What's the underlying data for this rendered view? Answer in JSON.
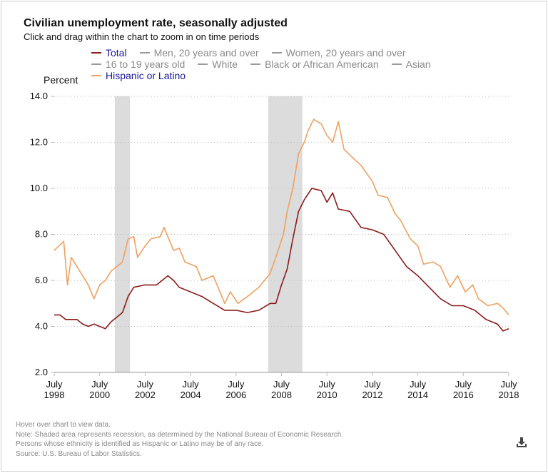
{
  "header": {
    "title": "Civilian unemployment rate, seasonally adjusted",
    "subtitle": "Click and drag within the chart to zoom in on time periods"
  },
  "legend": [
    {
      "label": "Total",
      "color": "#8b1a1a",
      "active": true
    },
    {
      "label": "Men, 20 years and over",
      "color": "#9a9a9a",
      "active": false
    },
    {
      "label": "Women, 20 years and over",
      "color": "#9a9a9a",
      "active": false
    },
    {
      "label": "16 to 19 years old",
      "color": "#9a9a9a",
      "active": false
    },
    {
      "label": "White",
      "color": "#9a9a9a",
      "active": false
    },
    {
      "label": "Black or African American",
      "color": "#9a9a9a",
      "active": false
    },
    {
      "label": "Asian",
      "color": "#9a9a9a",
      "active": false
    },
    {
      "label": "Hispanic or Latino",
      "color": "#f0a060",
      "active": true
    }
  ],
  "footer": {
    "hover": "Hover over chart to view data.",
    "note": "Note: Shaded area represents recession, as determined by the National Bureau of Economic Research.",
    "ethnicity": "Persons whose ethnicity is identified as Hispanic or Latino may be of any race.",
    "source": "Source: U.S. Bureau of Labor Statistics.",
    "download_icon": "download-icon"
  },
  "chart_data": {
    "type": "line",
    "ylabel": "Percent",
    "ylim": [
      2,
      14
    ],
    "yticks": [
      "2.0",
      "4.0",
      "6.0",
      "8.0",
      "10.0",
      "12.0",
      "14.0"
    ],
    "xlim": [
      "1998-07",
      "2018-07"
    ],
    "xticks": [
      [
        "July",
        "1998"
      ],
      [
        "July",
        "2000"
      ],
      [
        "July",
        "2002"
      ],
      [
        "July",
        "2004"
      ],
      [
        "July",
        "2006"
      ],
      [
        "July",
        "2008"
      ],
      [
        "July",
        "2010"
      ],
      [
        "July",
        "2012"
      ],
      [
        "July",
        "2014"
      ],
      [
        "July",
        "2016"
      ],
      [
        "July",
        "2018"
      ]
    ],
    "grid": "horizontal dotted",
    "legend_placement": "top",
    "recessions": [
      [
        "2001-03",
        "2001-11"
      ],
      [
        "2007-12",
        "2009-06"
      ]
    ],
    "recession_color": "#dcdcdc",
    "series": [
      {
        "name": "Total",
        "color": "#8b1a1a",
        "points": [
          [
            "1998-07",
            4.5
          ],
          [
            "1998-10",
            4.5
          ],
          [
            "1999-01",
            4.3
          ],
          [
            "1999-04",
            4.3
          ],
          [
            "1999-07",
            4.3
          ],
          [
            "1999-10",
            4.1
          ],
          [
            "2000-01",
            4.0
          ],
          [
            "2000-04",
            4.1
          ],
          [
            "2000-07",
            4.0
          ],
          [
            "2000-10",
            3.9
          ],
          [
            "2001-01",
            4.2
          ],
          [
            "2001-04",
            4.4
          ],
          [
            "2001-07",
            4.6
          ],
          [
            "2001-10",
            5.3
          ],
          [
            "2002-01",
            5.7
          ],
          [
            "2002-07",
            5.8
          ],
          [
            "2003-01",
            5.8
          ],
          [
            "2003-04",
            6.0
          ],
          [
            "2003-07",
            6.2
          ],
          [
            "2003-10",
            6.0
          ],
          [
            "2004-01",
            5.7
          ],
          [
            "2004-07",
            5.5
          ],
          [
            "2005-01",
            5.3
          ],
          [
            "2005-07",
            5.0
          ],
          [
            "2006-01",
            4.7
          ],
          [
            "2006-07",
            4.7
          ],
          [
            "2007-01",
            4.6
          ],
          [
            "2007-07",
            4.7
          ],
          [
            "2008-01",
            5.0
          ],
          [
            "2008-04",
            5.0
          ],
          [
            "2008-07",
            5.8
          ],
          [
            "2008-10",
            6.5
          ],
          [
            "2009-01",
            7.8
          ],
          [
            "2009-04",
            9.0
          ],
          [
            "2009-07",
            9.5
          ],
          [
            "2009-11",
            10.0
          ],
          [
            "2010-04",
            9.9
          ],
          [
            "2010-07",
            9.4
          ],
          [
            "2010-10",
            9.8
          ],
          [
            "2011-01",
            9.1
          ],
          [
            "2011-07",
            9.0
          ],
          [
            "2012-01",
            8.3
          ],
          [
            "2012-07",
            8.2
          ],
          [
            "2013-01",
            8.0
          ],
          [
            "2013-07",
            7.3
          ],
          [
            "2014-01",
            6.6
          ],
          [
            "2014-07",
            6.2
          ],
          [
            "2015-01",
            5.7
          ],
          [
            "2015-07",
            5.2
          ],
          [
            "2016-01",
            4.9
          ],
          [
            "2016-07",
            4.9
          ],
          [
            "2017-01",
            4.7
          ],
          [
            "2017-07",
            4.3
          ],
          [
            "2018-01",
            4.1
          ],
          [
            "2018-04",
            3.8
          ],
          [
            "2018-07",
            3.9
          ]
        ]
      },
      {
        "name": "Hispanic or Latino",
        "color": "#f0a060",
        "points": [
          [
            "1998-07",
            7.3
          ],
          [
            "1998-12",
            7.7
          ],
          [
            "1999-02",
            5.8
          ],
          [
            "1999-04",
            7.0
          ],
          [
            "1999-07",
            6.6
          ],
          [
            "2000-01",
            5.8
          ],
          [
            "2000-04",
            5.2
          ],
          [
            "2000-07",
            5.8
          ],
          [
            "2000-10",
            6.0
          ],
          [
            "2001-01",
            6.4
          ],
          [
            "2001-07",
            6.8
          ],
          [
            "2001-10",
            7.8
          ],
          [
            "2002-01",
            7.9
          ],
          [
            "2002-03",
            7.0
          ],
          [
            "2002-07",
            7.5
          ],
          [
            "2002-10",
            7.8
          ],
          [
            "2003-03",
            7.9
          ],
          [
            "2003-05",
            8.3
          ],
          [
            "2003-10",
            7.3
          ],
          [
            "2004-01",
            7.4
          ],
          [
            "2004-04",
            6.8
          ],
          [
            "2004-10",
            6.6
          ],
          [
            "2005-01",
            6.0
          ],
          [
            "2005-07",
            6.2
          ],
          [
            "2006-01",
            5.0
          ],
          [
            "2006-04",
            5.5
          ],
          [
            "2006-08",
            5.0
          ],
          [
            "2007-01",
            5.3
          ],
          [
            "2007-07",
            5.7
          ],
          [
            "2008-01",
            6.3
          ],
          [
            "2008-04",
            7.0
          ],
          [
            "2008-08",
            8.0
          ],
          [
            "2008-10",
            9.0
          ],
          [
            "2009-01",
            10.0
          ],
          [
            "2009-04",
            11.5
          ],
          [
            "2009-07",
            12.0
          ],
          [
            "2009-09",
            12.5
          ],
          [
            "2009-12",
            13.0
          ],
          [
            "2010-04",
            12.8
          ],
          [
            "2010-07",
            12.3
          ],
          [
            "2010-10",
            12.0
          ],
          [
            "2011-01",
            12.9
          ],
          [
            "2011-04",
            11.7
          ],
          [
            "2011-09",
            11.3
          ],
          [
            "2012-01",
            11.0
          ],
          [
            "2012-07",
            10.3
          ],
          [
            "2012-10",
            9.7
          ],
          [
            "2013-03",
            9.6
          ],
          [
            "2013-07",
            8.9
          ],
          [
            "2013-10",
            8.6
          ],
          [
            "2014-03",
            7.8
          ],
          [
            "2014-07",
            7.5
          ],
          [
            "2014-10",
            6.7
          ],
          [
            "2015-03",
            6.8
          ],
          [
            "2015-07",
            6.6
          ],
          [
            "2015-12",
            5.7
          ],
          [
            "2016-04",
            6.2
          ],
          [
            "2016-08",
            5.5
          ],
          [
            "2016-12",
            5.8
          ],
          [
            "2017-03",
            5.2
          ],
          [
            "2017-08",
            4.9
          ],
          [
            "2018-01",
            5.0
          ],
          [
            "2018-04",
            4.8
          ],
          [
            "2018-07",
            4.5
          ]
        ]
      }
    ]
  }
}
